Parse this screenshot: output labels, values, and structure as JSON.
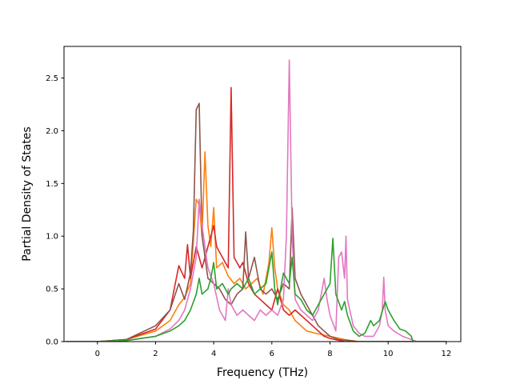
{
  "chart_data": {
    "type": "line",
    "xlabel": "Frequency (THz)",
    "ylabel": "Partial Density of States",
    "xlim": [
      -1.15,
      12.5
    ],
    "ylim": [
      0,
      2.8
    ],
    "xticks": [
      0,
      2,
      4,
      6,
      8,
      10,
      12
    ],
    "yticks": [
      0.0,
      0.5,
      1.0,
      1.5,
      2.0,
      2.5
    ],
    "xtick_labels": [
      "0",
      "2",
      "4",
      "6",
      "8",
      "10",
      "12"
    ],
    "ytick_labels": [
      "0.0",
      "0.5",
      "1.0",
      "1.5",
      "2.0",
      "2.5"
    ],
    "grid": false,
    "series": [
      {
        "color": "#ff7f0e",
        "points": [
          [
            -1.1,
            0
          ],
          [
            0,
            0
          ],
          [
            1,
            0.02
          ],
          [
            2,
            0.1
          ],
          [
            2.5,
            0.2
          ],
          [
            2.8,
            0.35
          ],
          [
            3.0,
            0.42
          ],
          [
            3.2,
            0.55
          ],
          [
            3.4,
            1.35
          ],
          [
            3.5,
            1.3
          ],
          [
            3.6,
            1.0
          ],
          [
            3.7,
            1.8
          ],
          [
            3.8,
            1.1
          ],
          [
            3.9,
            0.9
          ],
          [
            4.0,
            1.27
          ],
          [
            4.1,
            0.7
          ],
          [
            4.3,
            0.75
          ],
          [
            4.5,
            0.62
          ],
          [
            4.7,
            0.55
          ],
          [
            4.9,
            0.6
          ],
          [
            5.1,
            0.5
          ],
          [
            5.3,
            0.55
          ],
          [
            5.5,
            0.6
          ],
          [
            5.7,
            0.45
          ],
          [
            5.9,
            0.75
          ],
          [
            6.0,
            1.08
          ],
          [
            6.1,
            0.7
          ],
          [
            6.2,
            0.5
          ],
          [
            6.4,
            0.35
          ],
          [
            6.6,
            0.3
          ],
          [
            6.8,
            0.2
          ],
          [
            7.0,
            0.15
          ],
          [
            7.2,
            0.1
          ],
          [
            7.5,
            0.08
          ],
          [
            8.0,
            0.05
          ],
          [
            8.5,
            0.02
          ],
          [
            9,
            0
          ],
          [
            12,
            0
          ]
        ]
      },
      {
        "color": "#d62728",
        "points": [
          [
            -1.1,
            0
          ],
          [
            0,
            0
          ],
          [
            1,
            0.02
          ],
          [
            2,
            0.12
          ],
          [
            2.5,
            0.3
          ],
          [
            2.8,
            0.72
          ],
          [
            3.0,
            0.6
          ],
          [
            3.1,
            0.92
          ],
          [
            3.2,
            0.6
          ],
          [
            3.4,
            0.9
          ],
          [
            3.6,
            0.7
          ],
          [
            3.8,
            0.9
          ],
          [
            4.0,
            1.1
          ],
          [
            4.1,
            0.9
          ],
          [
            4.3,
            0.8
          ],
          [
            4.5,
            0.7
          ],
          [
            4.6,
            2.41
          ],
          [
            4.7,
            0.8
          ],
          [
            4.9,
            0.7
          ],
          [
            5.0,
            0.75
          ],
          [
            5.2,
            0.55
          ],
          [
            5.4,
            0.45
          ],
          [
            5.6,
            0.4
          ],
          [
            5.8,
            0.35
          ],
          [
            6.0,
            0.3
          ],
          [
            6.2,
            0.5
          ],
          [
            6.4,
            0.3
          ],
          [
            6.6,
            0.25
          ],
          [
            6.8,
            0.3
          ],
          [
            7.0,
            0.25
          ],
          [
            7.2,
            0.2
          ],
          [
            7.4,
            0.15
          ],
          [
            7.6,
            0.1
          ],
          [
            7.8,
            0.05
          ],
          [
            8.0,
            0.03
          ],
          [
            8.5,
            0
          ],
          [
            12,
            0
          ]
        ]
      },
      {
        "color": "#8c564b",
        "points": [
          [
            -1.1,
            0
          ],
          [
            0,
            0
          ],
          [
            1,
            0.02
          ],
          [
            2,
            0.15
          ],
          [
            2.5,
            0.3
          ],
          [
            2.8,
            0.55
          ],
          [
            3.0,
            0.4
          ],
          [
            3.2,
            0.65
          ],
          [
            3.3,
            1.05
          ],
          [
            3.4,
            2.2
          ],
          [
            3.5,
            2.26
          ],
          [
            3.6,
            1.0
          ],
          [
            3.8,
            0.6
          ],
          [
            4.0,
            0.55
          ],
          [
            4.2,
            0.5
          ],
          [
            4.4,
            0.4
          ],
          [
            4.6,
            0.35
          ],
          [
            4.8,
            0.45
          ],
          [
            5.0,
            0.5
          ],
          [
            5.1,
            1.04
          ],
          [
            5.2,
            0.6
          ],
          [
            5.4,
            0.8
          ],
          [
            5.6,
            0.5
          ],
          [
            5.8,
            0.45
          ],
          [
            6.0,
            0.5
          ],
          [
            6.2,
            0.4
          ],
          [
            6.4,
            0.55
          ],
          [
            6.6,
            0.5
          ],
          [
            6.7,
            1.27
          ],
          [
            6.8,
            0.6
          ],
          [
            7.0,
            0.45
          ],
          [
            7.2,
            0.35
          ],
          [
            7.4,
            0.25
          ],
          [
            7.6,
            0.15
          ],
          [
            7.8,
            0.1
          ],
          [
            8.0,
            0.05
          ],
          [
            8.3,
            0.02
          ],
          [
            9,
            0
          ],
          [
            12,
            0
          ]
        ]
      },
      {
        "color": "#e377c2",
        "points": [
          [
            -1.1,
            0
          ],
          [
            0,
            0
          ],
          [
            1,
            0.01
          ],
          [
            2,
            0.05
          ],
          [
            2.5,
            0.12
          ],
          [
            2.8,
            0.2
          ],
          [
            3.0,
            0.3
          ],
          [
            3.2,
            0.5
          ],
          [
            3.4,
            0.8
          ],
          [
            3.5,
            1.35
          ],
          [
            3.6,
            1.1
          ],
          [
            3.7,
            0.9
          ],
          [
            3.8,
            0.7
          ],
          [
            4.0,
            0.55
          ],
          [
            4.2,
            0.3
          ],
          [
            4.4,
            0.2
          ],
          [
            4.5,
            0.5
          ],
          [
            4.6,
            0.35
          ],
          [
            4.8,
            0.25
          ],
          [
            5.0,
            0.3
          ],
          [
            5.2,
            0.25
          ],
          [
            5.4,
            0.2
          ],
          [
            5.6,
            0.3
          ],
          [
            5.8,
            0.25
          ],
          [
            6.0,
            0.3
          ],
          [
            6.2,
            0.25
          ],
          [
            6.4,
            0.4
          ],
          [
            6.5,
            1.0
          ],
          [
            6.6,
            2.67
          ],
          [
            6.7,
            1.0
          ],
          [
            6.8,
            0.4
          ],
          [
            7.0,
            0.3
          ],
          [
            7.2,
            0.25
          ],
          [
            7.4,
            0.2
          ],
          [
            7.6,
            0.3
          ],
          [
            7.8,
            0.6
          ],
          [
            7.9,
            0.4
          ],
          [
            8.0,
            0.25
          ],
          [
            8.2,
            0.1
          ],
          [
            8.3,
            0.8
          ],
          [
            8.4,
            0.85
          ],
          [
            8.5,
            0.6
          ],
          [
            8.55,
            1.0
          ],
          [
            8.6,
            0.4
          ],
          [
            8.8,
            0.15
          ],
          [
            9.0,
            0.08
          ],
          [
            9.2,
            0.05
          ],
          [
            9.5,
            0.05
          ],
          [
            9.7,
            0.15
          ],
          [
            9.8,
            0.3
          ],
          [
            9.85,
            0.61
          ],
          [
            9.9,
            0.3
          ],
          [
            10.0,
            0.15
          ],
          [
            10.2,
            0.1
          ],
          [
            10.5,
            0.05
          ],
          [
            10.8,
            0.02
          ],
          [
            11,
            0
          ],
          [
            12,
            0
          ]
        ]
      },
      {
        "color": "#2ca02c",
        "points": [
          [
            -1.1,
            0
          ],
          [
            0,
            0
          ],
          [
            1,
            0.01
          ],
          [
            2,
            0.05
          ],
          [
            2.5,
            0.1
          ],
          [
            2.8,
            0.15
          ],
          [
            3.0,
            0.2
          ],
          [
            3.2,
            0.3
          ],
          [
            3.4,
            0.45
          ],
          [
            3.5,
            0.6
          ],
          [
            3.6,
            0.45
          ],
          [
            3.8,
            0.5
          ],
          [
            3.9,
            0.6
          ],
          [
            4.0,
            0.75
          ],
          [
            4.1,
            0.5
          ],
          [
            4.3,
            0.55
          ],
          [
            4.5,
            0.45
          ],
          [
            4.6,
            0.5
          ],
          [
            4.8,
            0.55
          ],
          [
            5.0,
            0.5
          ],
          [
            5.2,
            0.6
          ],
          [
            5.4,
            0.45
          ],
          [
            5.6,
            0.5
          ],
          [
            5.8,
            0.55
          ],
          [
            6.0,
            0.85
          ],
          [
            6.1,
            0.5
          ],
          [
            6.2,
            0.35
          ],
          [
            6.4,
            0.65
          ],
          [
            6.6,
            0.55
          ],
          [
            6.7,
            0.8
          ],
          [
            6.8,
            0.45
          ],
          [
            7.0,
            0.4
          ],
          [
            7.2,
            0.3
          ],
          [
            7.4,
            0.25
          ],
          [
            7.6,
            0.35
          ],
          [
            7.8,
            0.45
          ],
          [
            8.0,
            0.55
          ],
          [
            8.1,
            0.98
          ],
          [
            8.2,
            0.45
          ],
          [
            8.4,
            0.3
          ],
          [
            8.5,
            0.38
          ],
          [
            8.6,
            0.25
          ],
          [
            8.8,
            0.1
          ],
          [
            9.0,
            0.05
          ],
          [
            9.2,
            0.08
          ],
          [
            9.4,
            0.2
          ],
          [
            9.5,
            0.15
          ],
          [
            9.7,
            0.2
          ],
          [
            9.9,
            0.38
          ],
          [
            10.0,
            0.3
          ],
          [
            10.2,
            0.2
          ],
          [
            10.4,
            0.12
          ],
          [
            10.6,
            0.1
          ],
          [
            10.8,
            0.05
          ],
          [
            10.85,
            0
          ],
          [
            12,
            0
          ]
        ]
      }
    ]
  }
}
